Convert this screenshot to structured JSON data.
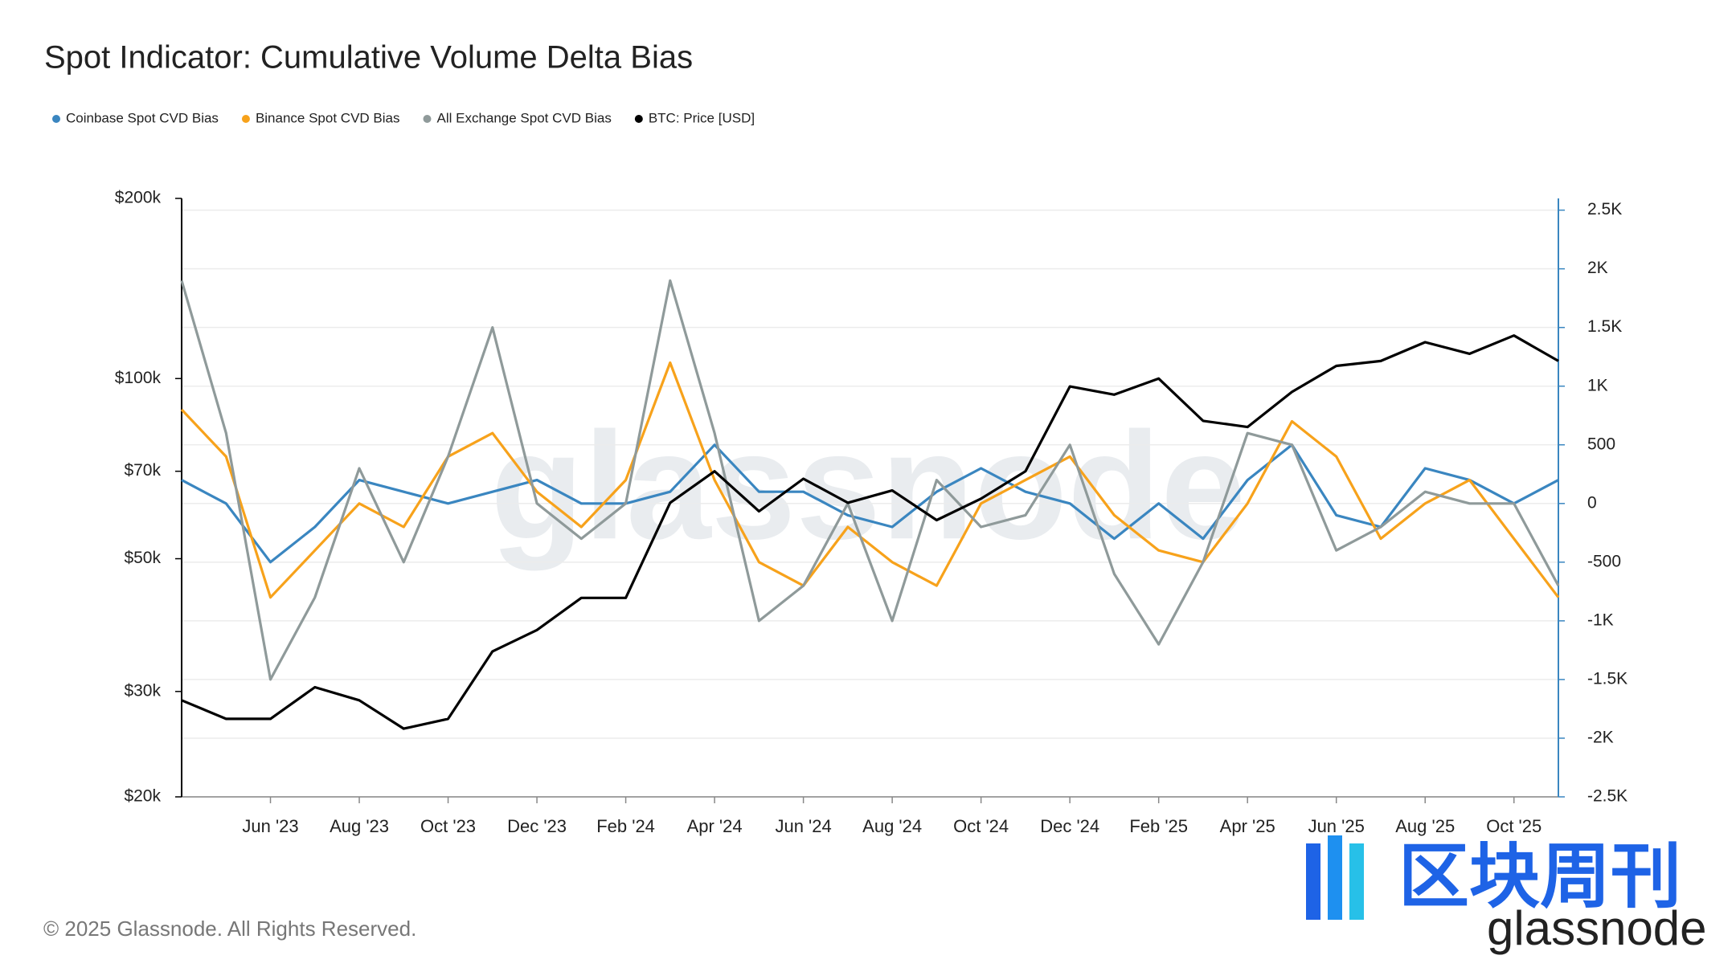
{
  "chart_data": {
    "type": "line",
    "title": "Spot Indicator: Cumulative Volume Delta Bias",
    "copyright": "© 2025 Glassnode. All Rights Reserved.",
    "watermark": "glassnode",
    "logo": {
      "cn": "区块周刊",
      "en": "glassnode"
    },
    "x": [
      "2023-04",
      "2023-05",
      "2023-06",
      "2023-07",
      "2023-08",
      "2023-09",
      "2023-10",
      "2023-11",
      "2023-12",
      "2024-01",
      "2024-02",
      "2024-03",
      "2024-04",
      "2024-05",
      "2024-06",
      "2024-07",
      "2024-08",
      "2024-09",
      "2024-10",
      "2024-11",
      "2024-12",
      "2025-01",
      "2025-02",
      "2025-03",
      "2025-04",
      "2025-05",
      "2025-06",
      "2025-07",
      "2025-08",
      "2025-09",
      "2025-10",
      "2025-11"
    ],
    "xlim": [
      "2023-04",
      "2025-11"
    ],
    "xticks": [
      {
        "value": "2023-06",
        "label": "Jun '23"
      },
      {
        "value": "2023-08",
        "label": "Aug '23"
      },
      {
        "value": "2023-10",
        "label": "Oct '23"
      },
      {
        "value": "2023-12",
        "label": "Dec '23"
      },
      {
        "value": "2024-02",
        "label": "Feb '24"
      },
      {
        "value": "2024-04",
        "label": "Apr '24"
      },
      {
        "value": "2024-06",
        "label": "Jun '24"
      },
      {
        "value": "2024-08",
        "label": "Aug '24"
      },
      {
        "value": "2024-10",
        "label": "Oct '24"
      },
      {
        "value": "2024-12",
        "label": "Dec '24"
      },
      {
        "value": "2025-02",
        "label": "Feb '25"
      },
      {
        "value": "2025-04",
        "label": "Apr '25"
      },
      {
        "value": "2025-06",
        "label": "Jun '25"
      },
      {
        "value": "2025-08",
        "label": "Aug '25"
      },
      {
        "value": "2025-10",
        "label": "Oct '25"
      }
    ],
    "ylog": true,
    "ylim": [
      20000,
      200000
    ],
    "yticks": [
      {
        "value": 20000,
        "label": "$20k"
      },
      {
        "value": 30000,
        "label": "$30k"
      },
      {
        "value": 50000,
        "label": "$50k"
      },
      {
        "value": 70000,
        "label": "$70k"
      },
      {
        "value": 100000,
        "label": "$100k"
      },
      {
        "value": 200000,
        "label": "$200k"
      }
    ],
    "y2lim": [
      -2500,
      2600
    ],
    "y2ticks": [
      {
        "value": -2500,
        "label": "-2.5K"
      },
      {
        "value": -2000,
        "label": "-2K"
      },
      {
        "value": -1500,
        "label": "-1.5K"
      },
      {
        "value": -1000,
        "label": "-1K"
      },
      -500,
      0,
      500,
      {
        "value": 1000,
        "label": "1K"
      },
      {
        "value": 1500,
        "label": "1.5K"
      },
      {
        "value": 2000,
        "label": "2K"
      },
      {
        "value": 2500,
        "label": "2.5K"
      }
    ],
    "grid": true,
    "legend": "top-left",
    "series": [
      {
        "name": "Coinbase Spot CVD Bias",
        "color": "#3a86c0",
        "axis": "y2",
        "values": [
          200,
          0,
          -500,
          -200,
          200,
          100,
          0,
          100,
          200,
          0,
          0,
          100,
          500,
          100,
          100,
          -100,
          -200,
          100,
          300,
          100,
          0,
          -300,
          0,
          -300,
          200,
          500,
          -100,
          -200,
          300,
          200,
          0,
          200
        ]
      },
      {
        "name": "Binance Spot CVD Bias",
        "color": "#f7a21b",
        "axis": "y2",
        "values": [
          800,
          400,
          -800,
          -400,
          0,
          -200,
          400,
          600,
          100,
          -200,
          200,
          1200,
          200,
          -500,
          -700,
          -200,
          -500,
          -700,
          0,
          200,
          400,
          -100,
          -400,
          -500,
          0,
          700,
          400,
          -300,
          0,
          200,
          -300,
          -800
        ]
      },
      {
        "name": "All Exchange Spot CVD Bias",
        "color": "#8f9a9a",
        "axis": "y2",
        "values": [
          1900,
          600,
          -1500,
          -800,
          300,
          -500,
          400,
          1500,
          0,
          -300,
          0,
          1900,
          600,
          -1000,
          -700,
          0,
          -1000,
          200,
          -200,
          -100,
          500,
          -600,
          -1200,
          -500,
          600,
          500,
          -400,
          -200,
          100,
          0,
          0,
          -700
        ]
      },
      {
        "name": "BTC: Price [USD]",
        "color": "#000000",
        "axis": "y",
        "values": [
          29000,
          27000,
          27000,
          30500,
          29000,
          26000,
          27000,
          35000,
          38000,
          43000,
          43000,
          62000,
          70000,
          60000,
          68000,
          62000,
          65000,
          58000,
          63000,
          70000,
          97000,
          94000,
          100000,
          85000,
          83000,
          95000,
          105000,
          107000,
          115000,
          110000,
          118000,
          107000
        ]
      }
    ]
  }
}
